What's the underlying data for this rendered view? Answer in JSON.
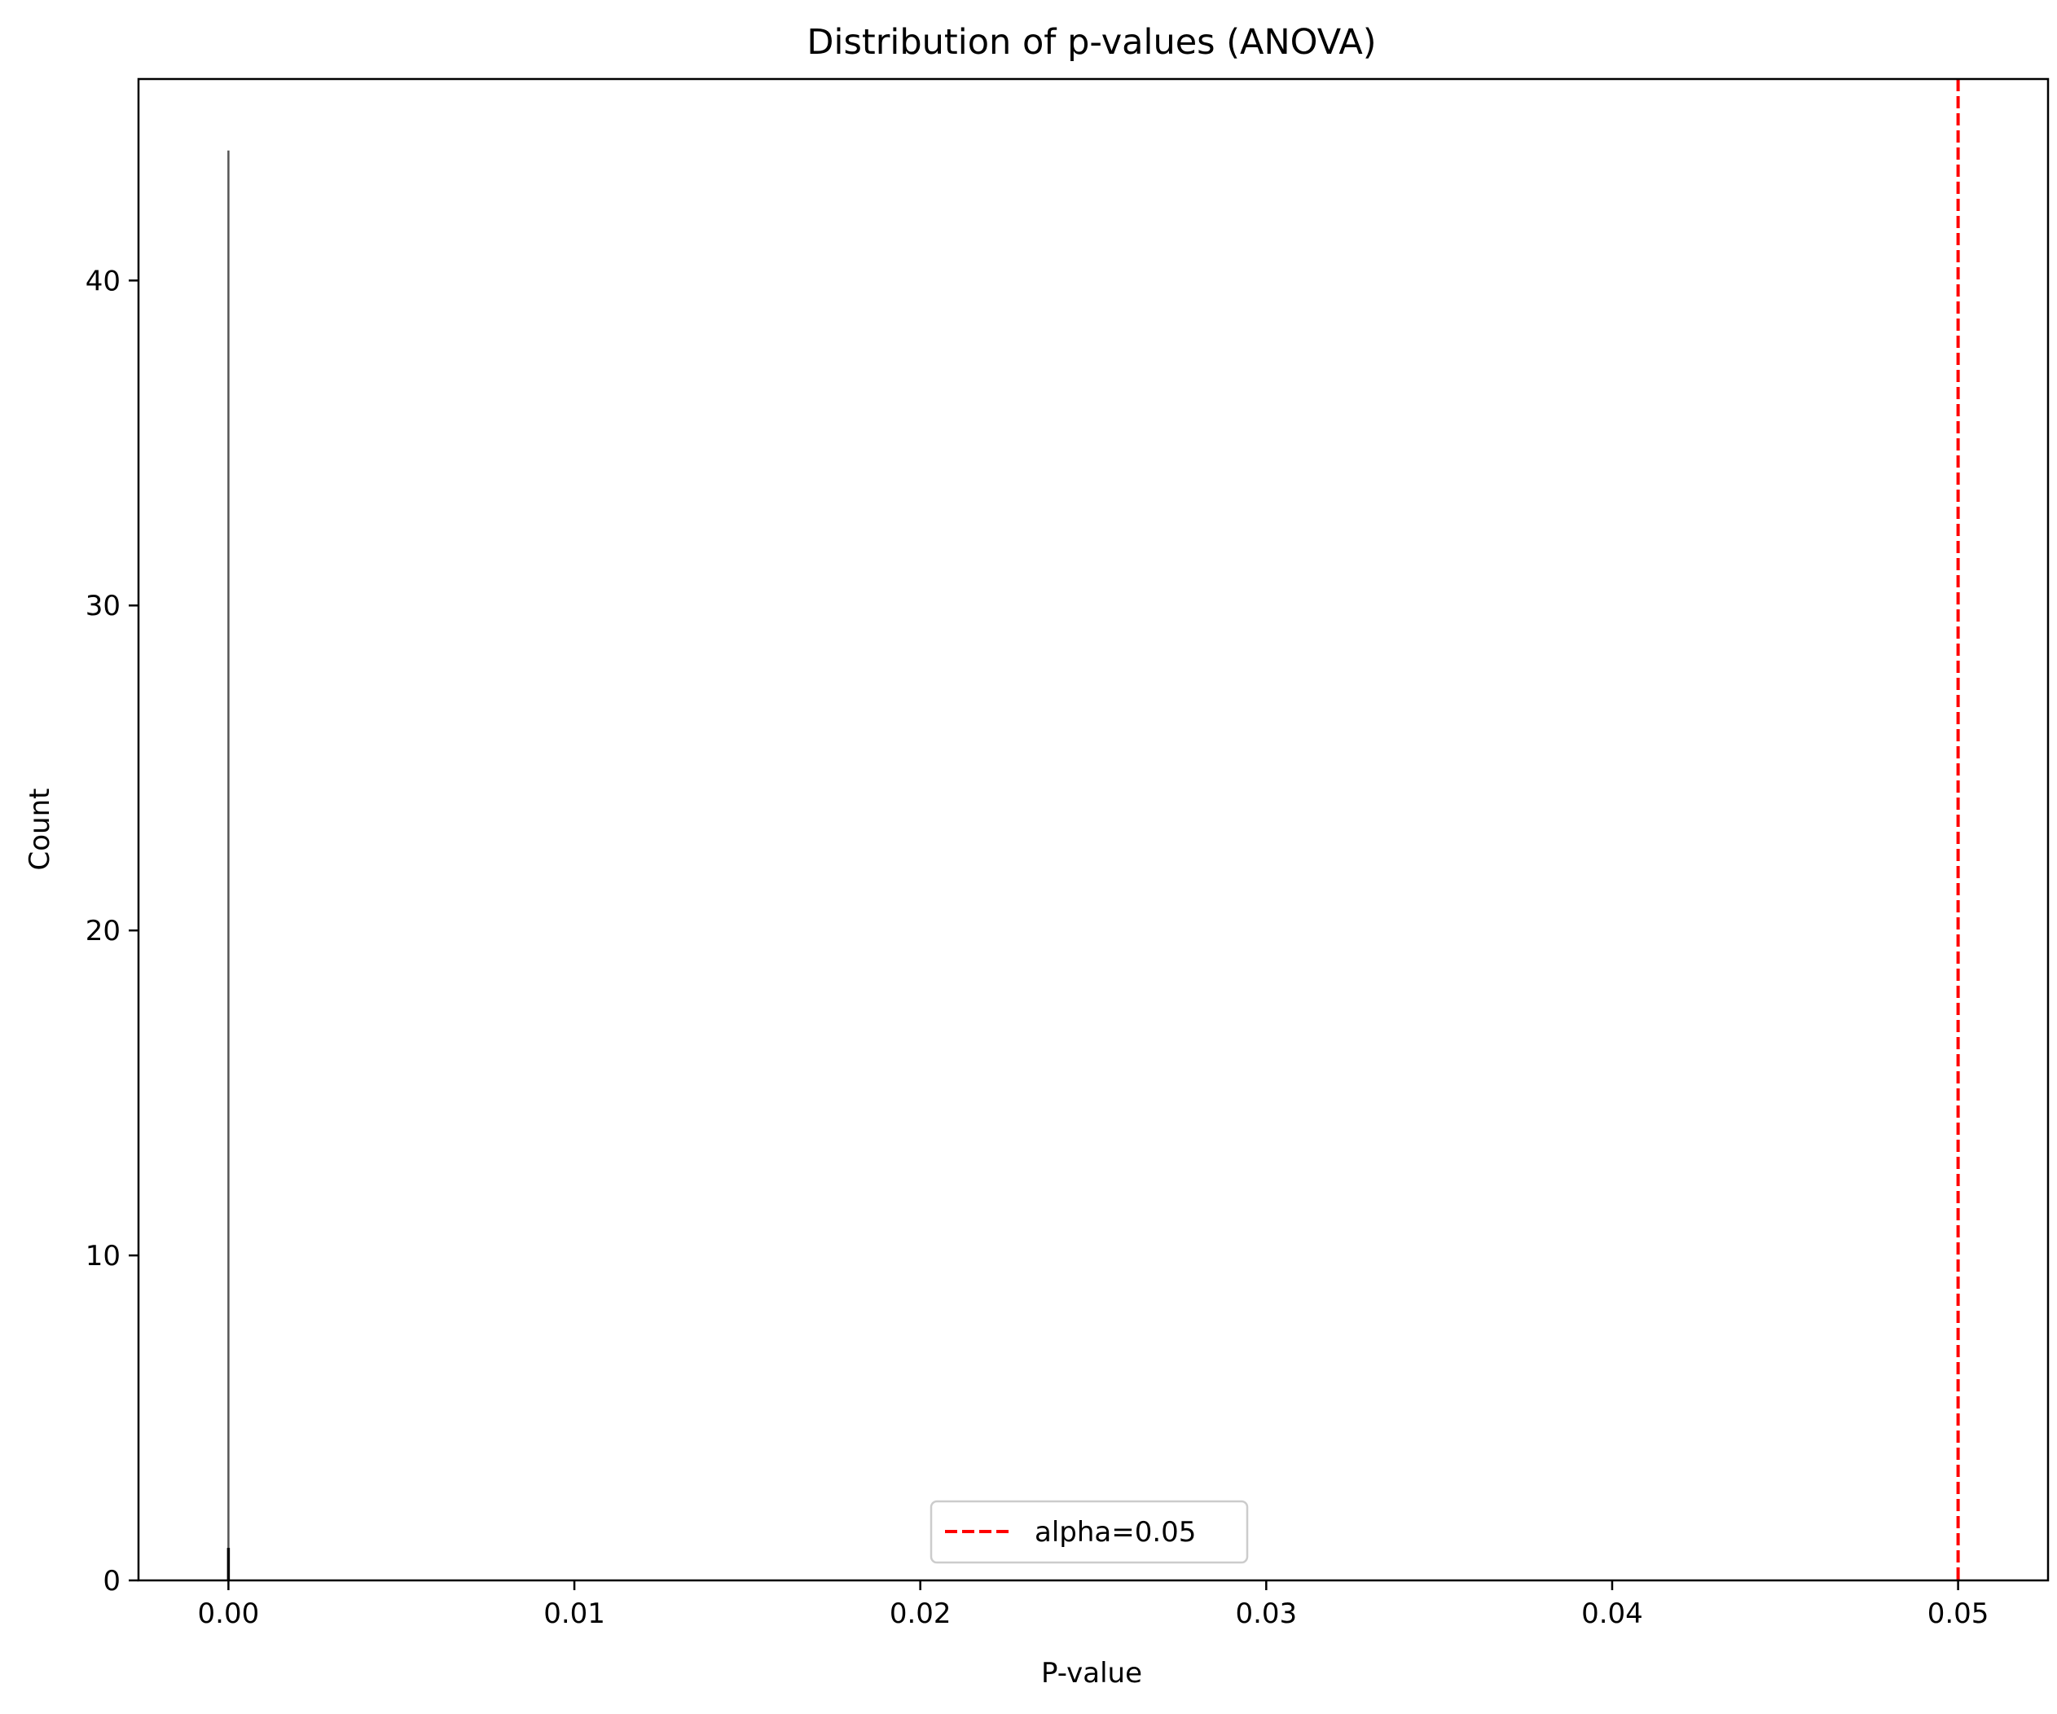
{
  "chart_data": {
    "type": "bar",
    "title": "Distribution of p-values (ANOVA)",
    "xlabel": "P-value",
    "ylabel": "Count",
    "xlim": [
      -0.0026,
      0.0526
    ],
    "ylim": [
      0,
      46.2
    ],
    "xticks": [
      {
        "value": 0.0,
        "label": "0.00"
      },
      {
        "value": 0.01,
        "label": "0.01"
      },
      {
        "value": 0.02,
        "label": "0.02"
      },
      {
        "value": 0.03,
        "label": "0.03"
      },
      {
        "value": 0.04,
        "label": "0.04"
      },
      {
        "value": 0.05,
        "label": "0.05"
      }
    ],
    "yticks": [
      {
        "value": 0,
        "label": "0"
      },
      {
        "value": 10,
        "label": "10"
      },
      {
        "value": 20,
        "label": "20"
      },
      {
        "value": 30,
        "label": "30"
      },
      {
        "value": 40,
        "label": "40"
      }
    ],
    "bins": [
      {
        "x": 0.0,
        "count": 44,
        "color": "#555555"
      },
      {
        "x": 0.0,
        "count": 1,
        "color": "#000000"
      }
    ],
    "reference_line": {
      "x": 0.05,
      "label": "alpha=0.05",
      "color": "#ff0000",
      "style": "dashed"
    },
    "legend": {
      "placement": "bottom-center",
      "entries": [
        {
          "label": "alpha=0.05",
          "color": "#ff0000",
          "style": "dashed"
        }
      ]
    },
    "grid": false
  }
}
